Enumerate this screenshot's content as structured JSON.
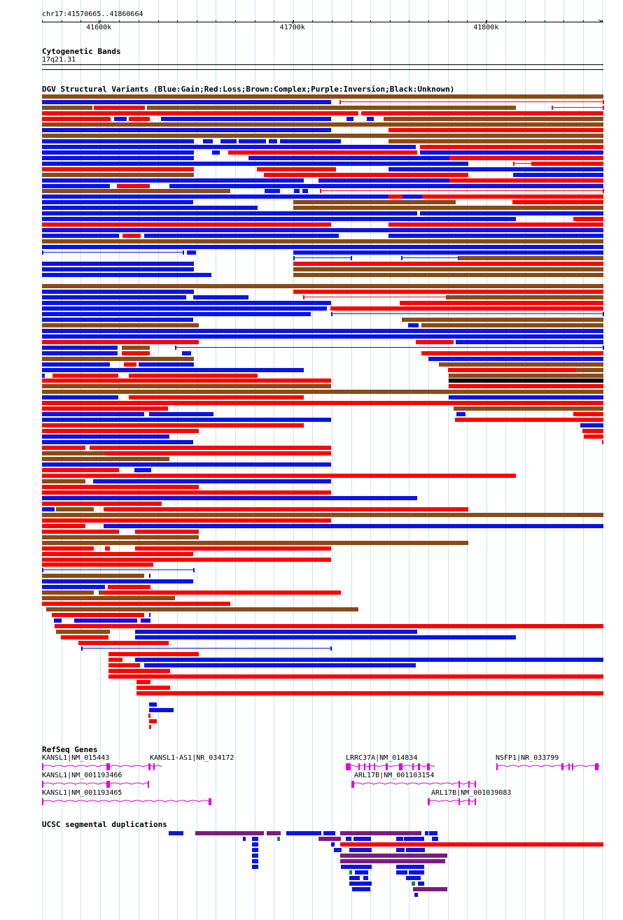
{
  "region": {
    "label": "chr17:41570665..41860664",
    "start": 41570665,
    "end": 41860664,
    "ticks": [
      {
        "pos": 41600000,
        "label": "41600k"
      },
      {
        "pos": 41700000,
        "label": "41700k"
      },
      {
        "pos": 41800000,
        "label": "41800k"
      }
    ]
  },
  "colors": {
    "gain": "#0b14e6",
    "loss": "#ff0000",
    "complex": "#8b4a17",
    "inversion": "#800080",
    "unknown": "#000000",
    "gene": "#e000e0",
    "segdup_blue": "#0b14e6",
    "segdup_purple": "#7f1a7f",
    "segdup_green": "#1a8a1a",
    "segdup_red": "#ff0000",
    "grid": "#c8e4f2"
  },
  "tracks": {
    "cytoband": {
      "title": "Cytogenetic Bands",
      "band": "17q21.31"
    },
    "dgv": {
      "title": "DGV Structural Variants (Blue:Gain;Red:Loss;Brown:Complex;Purple:Inversion;Black:Unknown)"
    },
    "refseq": {
      "title": "RefSeq Genes",
      "genes": [
        {
          "name": "KANSL1|NM_015443"
        },
        {
          "name": "KANSL1-AS1|NR_034172"
        },
        {
          "name": "LRRC37A|NM_014834"
        },
        {
          "name": "NSFP1|NR_033799"
        },
        {
          "name": "KANSL1|NM_001193466"
        },
        {
          "name": "ARL17B|NM_001103154"
        },
        {
          "name": "KANSL1|NM_001193465"
        },
        {
          "name": "ARL17B|NM_001039083"
        }
      ]
    },
    "segdup": {
      "title": "UCSC segmental duplications"
    }
  }
}
